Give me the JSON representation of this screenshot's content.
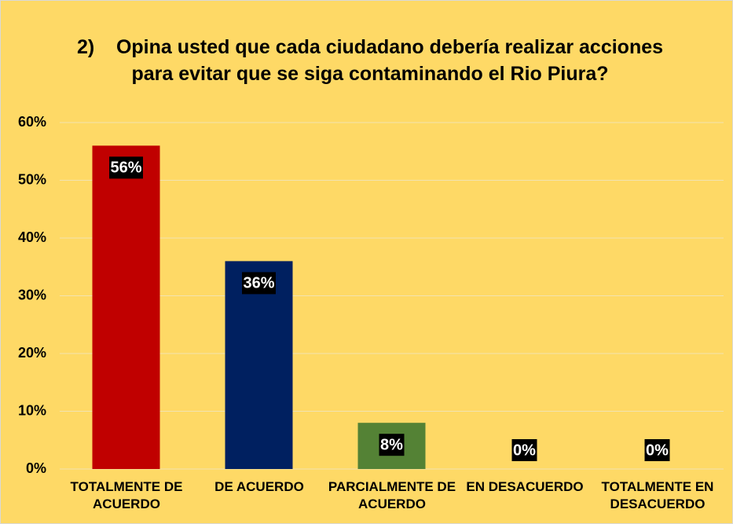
{
  "chart_data": {
    "type": "bar",
    "title": "2)    Opina usted que cada ciudadano debería realizar acciones para evitar que se siga contaminando el Rio Piura?",
    "categories": [
      "TOTALMENTE DE ACUERDO",
      "DE ACUERDO",
      "PARCIALMENTE DE ACUERDO",
      "EN DESACUERDO",
      "TOTALMENTE EN DESACUERDO"
    ],
    "values": [
      56,
      36,
      8,
      0,
      0
    ],
    "value_labels": [
      "56%",
      "36%",
      "8%",
      "0%",
      "0%"
    ],
    "colors": [
      "#c00000",
      "#002060",
      "#548235",
      "#548235",
      "#548235"
    ],
    "ylim": [
      0,
      60
    ],
    "yticks": [
      {
        "value": 0,
        "label": "0%"
      },
      {
        "value": 10,
        "label": "10%"
      },
      {
        "value": 20,
        "label": "20%"
      },
      {
        "value": 30,
        "label": "30%"
      },
      {
        "value": 40,
        "label": "40%"
      },
      {
        "value": 50,
        "label": "50%"
      },
      {
        "value": 60,
        "label": "60%"
      }
    ],
    "grid": true
  }
}
